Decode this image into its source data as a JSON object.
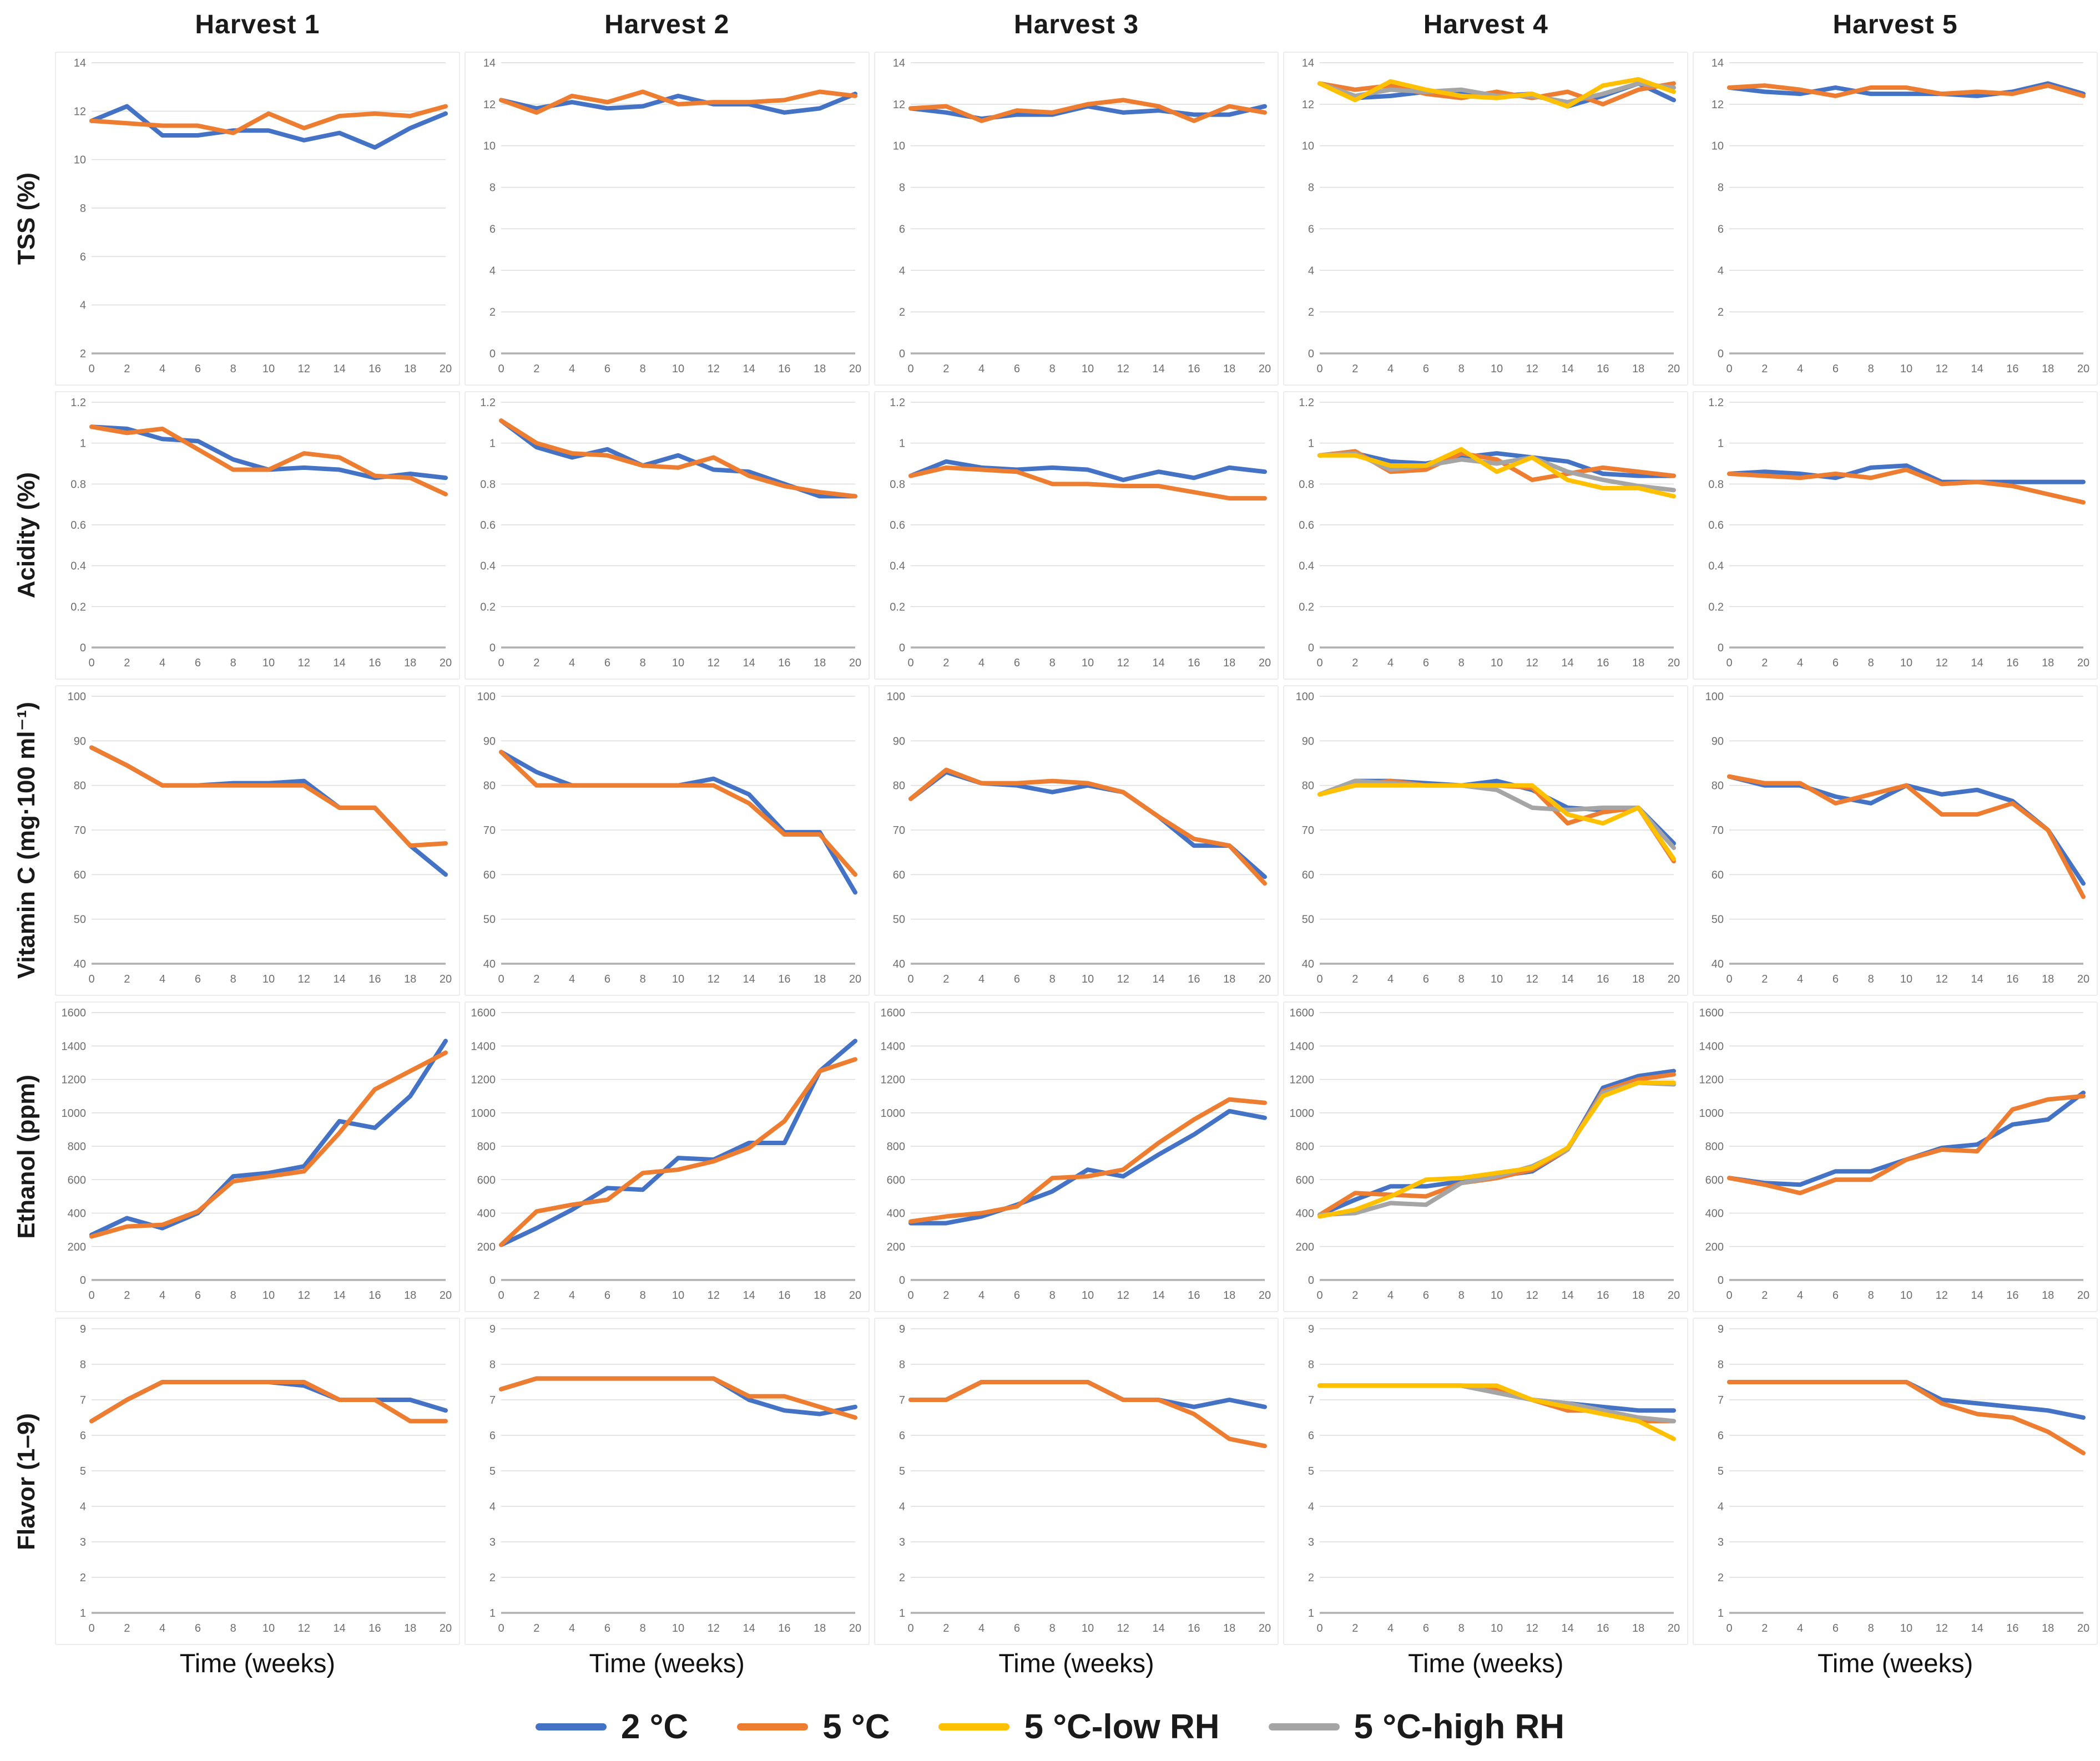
{
  "columns": [
    "Harvest 1",
    "Harvest 2",
    "Harvest 3",
    "Harvest 4",
    "Harvest 5"
  ],
  "rows": [
    {
      "label": "TSS (%)",
      "ylim": [
        0,
        14
      ],
      "step": 2
    },
    {
      "label": "Acidity (%)",
      "ylim": [
        0,
        1.2
      ],
      "step": 0.2
    },
    {
      "label": "Vitamin C (mg·100 ml⁻¹)",
      "ylim": [
        40,
        100
      ],
      "step": 10
    },
    {
      "label": "Ethanol (ppm)",
      "ylim": [
        0,
        1600
      ],
      "step": 200
    },
    {
      "label": "Flavor (1–9)",
      "ylim": [
        1,
        9
      ],
      "step": 1
    }
  ],
  "series": {
    "c2": {
      "label": "2 °C",
      "color": "#4472C4"
    },
    "c5": {
      "label": "5 °C",
      "color": "#ED7D31"
    },
    "c5lo": {
      "label": "5 °C-low RH",
      "color": "#FFC000"
    },
    "c5hi": {
      "label": "5 °C-high RH",
      "color": "#A5A5A5"
    }
  },
  "legend_order": [
    "c2",
    "c5",
    "c5lo",
    "c5hi"
  ],
  "x": {
    "min": 0,
    "max": 20,
    "step": 2,
    "title": "Time (weeks)"
  },
  "chart_data": {
    "type": "line",
    "x_weeks": [
      0,
      2,
      4,
      6,
      8,
      10,
      12,
      14,
      16,
      18,
      20
    ],
    "grid": "horizontal",
    "legend_position": "bottom",
    "charts": [
      {
        "r": 0,
        "c": 0,
        "measure": "TSS (%)",
        "harvest": "Harvest 1",
        "ylim": [
          2,
          14
        ],
        "series": {
          "c2": [
            11.6,
            12.2,
            11.0,
            11.0,
            11.2,
            11.2,
            10.8,
            11.1,
            10.5,
            11.3,
            11.9
          ],
          "c5": [
            11.6,
            11.5,
            11.4,
            11.4,
            11.1,
            11.9,
            11.3,
            11.8,
            11.9,
            11.8,
            12.2
          ]
        }
      },
      {
        "r": 0,
        "c": 1,
        "measure": "TSS (%)",
        "harvest": "Harvest 2",
        "series": {
          "c2": [
            12.2,
            11.8,
            12.1,
            11.8,
            11.9,
            12.4,
            12.0,
            12.0,
            11.6,
            11.8,
            12.5
          ],
          "c5": [
            12.2,
            11.6,
            12.4,
            12.1,
            12.6,
            12.0,
            12.1,
            12.1,
            12.2,
            12.6,
            12.4
          ]
        }
      },
      {
        "r": 0,
        "c": 2,
        "measure": "TSS (%)",
        "harvest": "Harvest 3",
        "series": {
          "c2": [
            11.8,
            11.6,
            11.3,
            11.5,
            11.5,
            11.9,
            11.6,
            11.7,
            11.5,
            11.5,
            11.9
          ],
          "c5": [
            11.8,
            11.9,
            11.2,
            11.7,
            11.6,
            12.0,
            12.2,
            11.9,
            11.2,
            11.9,
            11.6
          ]
        }
      },
      {
        "r": 0,
        "c": 3,
        "measure": "TSS (%)",
        "harvest": "Harvest 4",
        "series": {
          "c2": [
            13.0,
            12.3,
            12.4,
            12.6,
            12.5,
            12.4,
            12.5,
            11.9,
            12.4,
            13.0,
            12.2
          ],
          "c5": [
            13.0,
            12.7,
            12.9,
            12.5,
            12.3,
            12.6,
            12.3,
            12.6,
            12.0,
            12.7,
            13.0
          ],
          "c5lo": [
            13.0,
            12.2,
            13.1,
            12.7,
            12.4,
            12.3,
            12.5,
            11.9,
            12.9,
            13.2,
            12.6
          ],
          "c5hi": [
            13.0,
            12.4,
            12.7,
            12.6,
            12.7,
            12.4,
            12.4,
            12.1,
            12.5,
            13.0,
            12.8
          ]
        }
      },
      {
        "r": 0,
        "c": 4,
        "measure": "TSS (%)",
        "harvest": "Harvest 5",
        "series": {
          "c2": [
            12.8,
            12.6,
            12.5,
            12.8,
            12.5,
            12.5,
            12.5,
            12.4,
            12.6,
            13.0,
            12.5
          ],
          "c5": [
            12.8,
            12.9,
            12.7,
            12.4,
            12.8,
            12.8,
            12.5,
            12.6,
            12.5,
            12.9,
            12.4
          ]
        }
      },
      {
        "r": 1,
        "c": 0,
        "measure": "Acidity (%)",
        "harvest": "Harvest 1",
        "series": {
          "c2": [
            1.08,
            1.07,
            1.02,
            1.01,
            0.92,
            0.87,
            0.88,
            0.87,
            0.83,
            0.85,
            0.83
          ],
          "c5": [
            1.08,
            1.05,
            1.07,
            0.97,
            0.87,
            0.87,
            0.95,
            0.93,
            0.84,
            0.83,
            0.75
          ]
        }
      },
      {
        "r": 1,
        "c": 1,
        "measure": "Acidity (%)",
        "harvest": "Harvest 2",
        "series": {
          "c2": [
            1.11,
            0.98,
            0.93,
            0.97,
            0.89,
            0.94,
            0.87,
            0.86,
            0.8,
            0.74,
            0.74
          ],
          "c5": [
            1.11,
            1.0,
            0.95,
            0.94,
            0.89,
            0.88,
            0.93,
            0.84,
            0.79,
            0.76,
            0.74
          ]
        }
      },
      {
        "r": 1,
        "c": 2,
        "measure": "Acidity (%)",
        "harvest": "Harvest 3",
        "series": {
          "c2": [
            0.84,
            0.91,
            0.88,
            0.87,
            0.88,
            0.87,
            0.82,
            0.86,
            0.83,
            0.88,
            0.86
          ],
          "c5": [
            0.84,
            0.88,
            0.87,
            0.86,
            0.8,
            0.8,
            0.79,
            0.79,
            0.76,
            0.73,
            0.73
          ]
        }
      },
      {
        "r": 1,
        "c": 3,
        "measure": "Acidity (%)",
        "harvest": "Harvest 4",
        "series": {
          "c2": [
            0.94,
            0.95,
            0.91,
            0.9,
            0.93,
            0.95,
            0.93,
            0.91,
            0.85,
            0.84,
            0.84
          ],
          "c5": [
            0.94,
            0.96,
            0.86,
            0.87,
            0.95,
            0.92,
            0.82,
            0.85,
            0.88,
            0.86,
            0.84
          ],
          "c5lo": [
            0.94,
            0.94,
            0.89,
            0.89,
            0.97,
            0.86,
            0.93,
            0.82,
            0.78,
            0.78,
            0.74
          ],
          "c5hi": [
            0.94,
            0.95,
            0.87,
            0.89,
            0.92,
            0.9,
            0.93,
            0.86,
            0.82,
            0.79,
            0.77
          ]
        }
      },
      {
        "r": 1,
        "c": 4,
        "measure": "Acidity (%)",
        "harvest": "Harvest 5",
        "series": {
          "c2": [
            0.85,
            0.86,
            0.85,
            0.83,
            0.88,
            0.89,
            0.81,
            0.81,
            0.81,
            0.81,
            0.81
          ],
          "c5": [
            0.85,
            0.84,
            0.83,
            0.85,
            0.83,
            0.87,
            0.8,
            0.81,
            0.79,
            0.75,
            0.71
          ]
        }
      },
      {
        "r": 2,
        "c": 0,
        "measure": "Vitamin C (mg·100 ml⁻¹)",
        "harvest": "Harvest 1",
        "series": {
          "c2": [
            88.5,
            84.5,
            80,
            80,
            80.5,
            80.5,
            81,
            75,
            75,
            66.5,
            60
          ],
          "c5": [
            88.5,
            84.5,
            80,
            80,
            80,
            80,
            80,
            75,
            75,
            66.5,
            67
          ]
        }
      },
      {
        "r": 2,
        "c": 1,
        "measure": "Vitamin C (mg·100 ml⁻¹)",
        "harvest": "Harvest 2",
        "series": {
          "c2": [
            87.5,
            83,
            80,
            80,
            80,
            80,
            81.5,
            78,
            69.5,
            69.5,
            56
          ],
          "c5": [
            87.5,
            80,
            80,
            80,
            80,
            80,
            80,
            76,
            69,
            69,
            60
          ]
        }
      },
      {
        "r": 2,
        "c": 2,
        "measure": "Vitamin C (mg·100 ml⁻¹)",
        "harvest": "Harvest 3",
        "series": {
          "c2": [
            77,
            83,
            80.5,
            80,
            78.5,
            80,
            78.5,
            73,
            66.5,
            66.5,
            59.5
          ],
          "c5": [
            77,
            83.5,
            80.5,
            80.5,
            81,
            80.5,
            78.5,
            73,
            68,
            66.5,
            58
          ]
        }
      },
      {
        "r": 2,
        "c": 3,
        "measure": "Vitamin C (mg·100 ml⁻¹)",
        "harvest": "Harvest 4",
        "series": {
          "c2": [
            78,
            81,
            81,
            80.5,
            80,
            81,
            79,
            75,
            74.5,
            75,
            67
          ],
          "c5": [
            78,
            80,
            81,
            80,
            80,
            80,
            79.5,
            71.5,
            74,
            75,
            63
          ],
          "c5lo": [
            78,
            80,
            80,
            80,
            80,
            80,
            80,
            73.5,
            71.5,
            75,
            63.5
          ],
          "c5hi": [
            78,
            81,
            80.5,
            80,
            80,
            79,
            75,
            74.5,
            75,
            75,
            66
          ]
        }
      },
      {
        "r": 2,
        "c": 4,
        "measure": "Vitamin C (mg·100 ml⁻¹)",
        "harvest": "Harvest 5",
        "series": {
          "c2": [
            82,
            80,
            80,
            77.5,
            76,
            80,
            78,
            79,
            76.5,
            70,
            58
          ],
          "c5": [
            82,
            80.5,
            80.5,
            76,
            78,
            80,
            73.5,
            73.5,
            76,
            70,
            55
          ]
        }
      },
      {
        "r": 3,
        "c": 0,
        "measure": "Ethanol (ppm)",
        "harvest": "Harvest 1",
        "series": {
          "c2": [
            270,
            370,
            310,
            400,
            620,
            640,
            680,
            950,
            910,
            1100,
            1430
          ],
          "c5": [
            260,
            320,
            330,
            410,
            590,
            620,
            650,
            880,
            1140,
            1250,
            1360
          ]
        }
      },
      {
        "r": 3,
        "c": 1,
        "measure": "Ethanol (ppm)",
        "harvest": "Harvest 2",
        "series": {
          "c2": [
            210,
            310,
            420,
            550,
            540,
            730,
            720,
            820,
            820,
            1250,
            1430
          ],
          "c5": [
            210,
            410,
            450,
            480,
            640,
            660,
            710,
            790,
            950,
            1250,
            1320
          ]
        }
      },
      {
        "r": 3,
        "c": 2,
        "measure": "Ethanol (ppm)",
        "harvest": "Harvest 3",
        "series": {
          "c2": [
            340,
            340,
            380,
            450,
            530,
            660,
            620,
            750,
            870,
            1010,
            970
          ],
          "c5": [
            350,
            380,
            400,
            440,
            610,
            620,
            660,
            820,
            960,
            1080,
            1060
          ]
        }
      },
      {
        "r": 3,
        "c": 3,
        "measure": "Ethanol (ppm)",
        "harvest": "Harvest 4",
        "series": {
          "c2": [
            390,
            480,
            560,
            560,
            590,
            620,
            650,
            780,
            1150,
            1220,
            1250
          ],
          "c5": [
            390,
            520,
            510,
            500,
            580,
            610,
            660,
            780,
            1130,
            1200,
            1230
          ],
          "c5lo": [
            380,
            420,
            500,
            600,
            610,
            640,
            670,
            790,
            1100,
            1180,
            1180
          ],
          "c5hi": [
            390,
            400,
            460,
            450,
            580,
            620,
            680,
            780,
            1120,
            1180,
            1170
          ]
        }
      },
      {
        "r": 3,
        "c": 4,
        "measure": "Ethanol (ppm)",
        "harvest": "Harvest 5",
        "series": {
          "c2": [
            610,
            580,
            570,
            650,
            650,
            720,
            790,
            810,
            930,
            960,
            1120
          ],
          "c5": [
            610,
            570,
            520,
            600,
            600,
            720,
            780,
            770,
            1020,
            1080,
            1100
          ]
        }
      },
      {
        "r": 4,
        "c": 0,
        "measure": "Flavor (1–9)",
        "harvest": "Harvest 1",
        "series": {
          "c2": [
            6.4,
            7.0,
            7.5,
            7.5,
            7.5,
            7.5,
            7.4,
            7.0,
            7.0,
            7.0,
            6.7
          ],
          "c5": [
            6.4,
            7.0,
            7.5,
            7.5,
            7.5,
            7.5,
            7.5,
            7.0,
            7.0,
            6.4,
            6.4
          ]
        }
      },
      {
        "r": 4,
        "c": 1,
        "measure": "Flavor (1–9)",
        "harvest": "Harvest 2",
        "series": {
          "c2": [
            7.3,
            7.6,
            7.6,
            7.6,
            7.6,
            7.6,
            7.6,
            7.0,
            6.7,
            6.6,
            6.8
          ],
          "c5": [
            7.3,
            7.6,
            7.6,
            7.6,
            7.6,
            7.6,
            7.6,
            7.1,
            7.1,
            6.8,
            6.5
          ]
        }
      },
      {
        "r": 4,
        "c": 2,
        "measure": "Flavor (1–9)",
        "harvest": "Harvest 3",
        "series": {
          "c2": [
            7.0,
            7.0,
            7.5,
            7.5,
            7.5,
            7.5,
            7.0,
            7.0,
            6.8,
            7.0,
            6.8
          ],
          "c5": [
            7.0,
            7.0,
            7.5,
            7.5,
            7.5,
            7.5,
            7.0,
            7.0,
            6.6,
            5.9,
            5.7
          ]
        }
      },
      {
        "r": 4,
        "c": 3,
        "measure": "Flavor (1–9)",
        "harvest": "Harvest 4",
        "series": {
          "c2": [
            7.4,
            7.4,
            7.4,
            7.4,
            7.4,
            7.2,
            7.0,
            6.9,
            6.8,
            6.7,
            6.7
          ],
          "c5": [
            7.4,
            7.4,
            7.4,
            7.4,
            7.4,
            7.3,
            7.0,
            6.7,
            6.7,
            6.4,
            6.4
          ],
          "c5lo": [
            7.4,
            7.4,
            7.4,
            7.4,
            7.4,
            7.4,
            7.0,
            6.8,
            6.6,
            6.4,
            5.9
          ],
          "c5hi": [
            7.4,
            7.4,
            7.4,
            7.4,
            7.4,
            7.2,
            7.0,
            6.9,
            6.7,
            6.5,
            6.4
          ]
        }
      },
      {
        "r": 4,
        "c": 4,
        "measure": "Flavor (1–9)",
        "harvest": "Harvest 5",
        "series": {
          "c2": [
            7.5,
            7.5,
            7.5,
            7.5,
            7.5,
            7.5,
            7.0,
            6.9,
            6.8,
            6.7,
            6.5
          ],
          "c5": [
            7.5,
            7.5,
            7.5,
            7.5,
            7.5,
            7.5,
            6.9,
            6.6,
            6.5,
            6.1,
            5.5
          ]
        }
      }
    ]
  }
}
